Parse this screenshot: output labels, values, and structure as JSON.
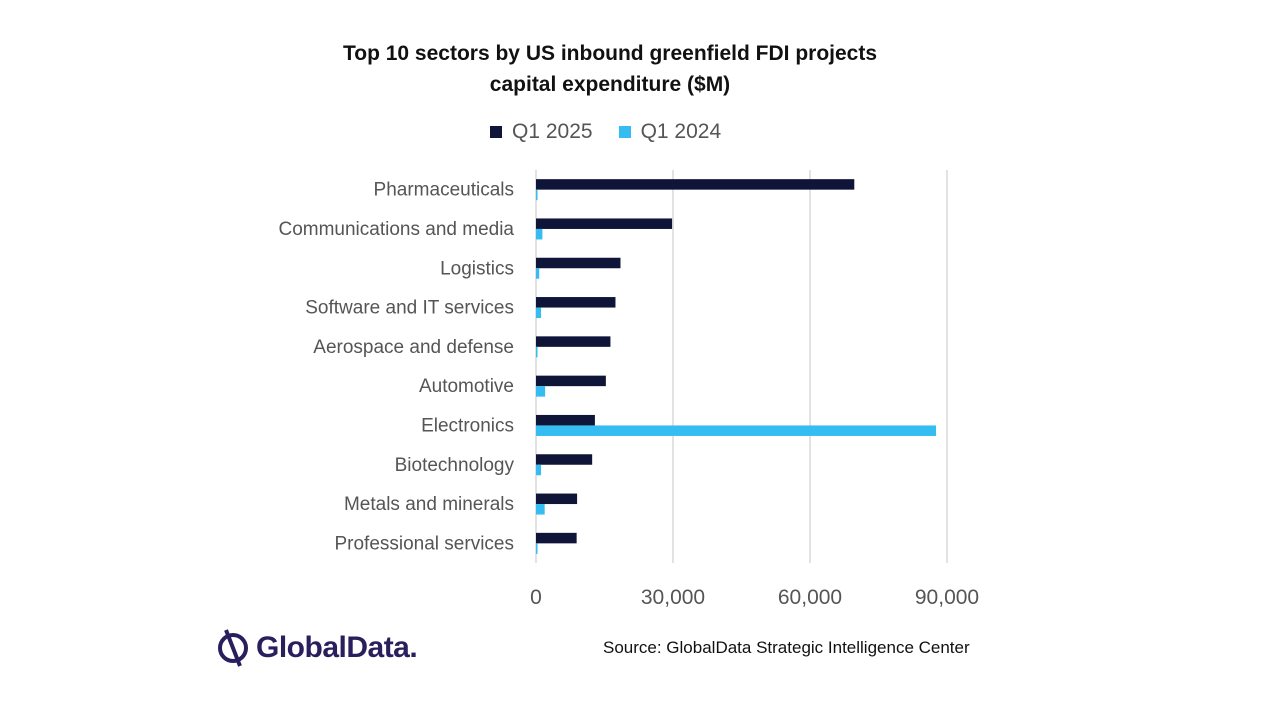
{
  "chart_data": {
    "type": "bar",
    "orientation": "horizontal",
    "title": "Top 10 sectors by US inbound greenfield FDI projects capital expenditure ($M)",
    "title_lines": [
      "Top 10 sectors by US inbound greenfield FDI projects",
      "capital expenditure ($M)"
    ],
    "categories": [
      "Pharmaceuticals",
      "Communications and media",
      "Logistics",
      "Software and IT services",
      "Aerospace and defense",
      "Automotive",
      "Electronics",
      "Biotechnology",
      "Metals and minerals",
      "Professional services"
    ],
    "series": [
      {
        "name": "Q1 2025",
        "color": "#0f1538",
        "values": [
          69700,
          29800,
          18500,
          17400,
          16300,
          15300,
          12900,
          12300,
          9000,
          8900
        ]
      },
      {
        "name": "Q1 2024",
        "color": "#35bdf2",
        "values": [
          300,
          1400,
          700,
          1100,
          200,
          2000,
          87600,
          1100,
          1900,
          100
        ]
      }
    ],
    "xlim": [
      0,
      90000
    ],
    "xticks": [
      0,
      30000,
      60000,
      90000
    ],
    "xtick_labels": [
      "0",
      "30,000",
      "60,000",
      "90,000"
    ],
    "grid": "vertical",
    "legend_position": "top"
  },
  "footer": {
    "logo_text": "GlobalData.",
    "source": "Source: GlobalData Strategic Intelligence Center"
  }
}
